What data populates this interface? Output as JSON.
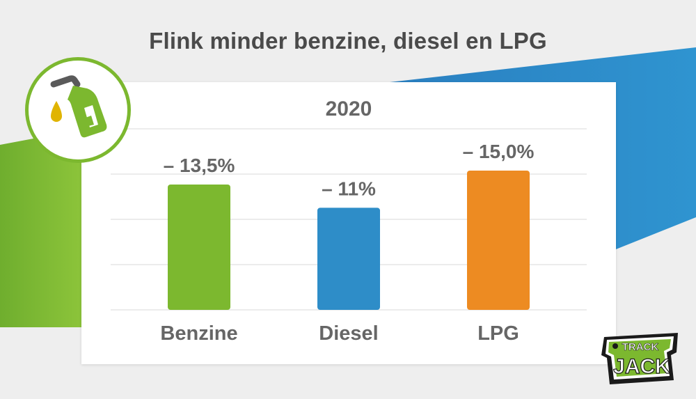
{
  "title": "Flink minder benzine, diesel en LPG",
  "icon": "fuel-pump-nozzle-icon",
  "logo": {
    "text_top": "TRACK",
    "text_bottom": "JACK"
  },
  "colors": {
    "green": "#7cb82f",
    "blue": "#2e8dc8",
    "orange": "#ed8b22",
    "text": "#666666",
    "grid": "#e6e6e6"
  },
  "chart_data": {
    "type": "bar",
    "title": "2020",
    "categories": [
      "Benzine",
      "Diesel",
      "LPG"
    ],
    "values": [
      -13.5,
      -11.0,
      -15.0
    ],
    "data_labels": [
      "– 13,5%",
      "– 11%",
      "– 15,0%"
    ],
    "series_colors": [
      "#7cb82f",
      "#2e8dc8",
      "#ed8b22"
    ],
    "grid": true,
    "legend": "none"
  }
}
